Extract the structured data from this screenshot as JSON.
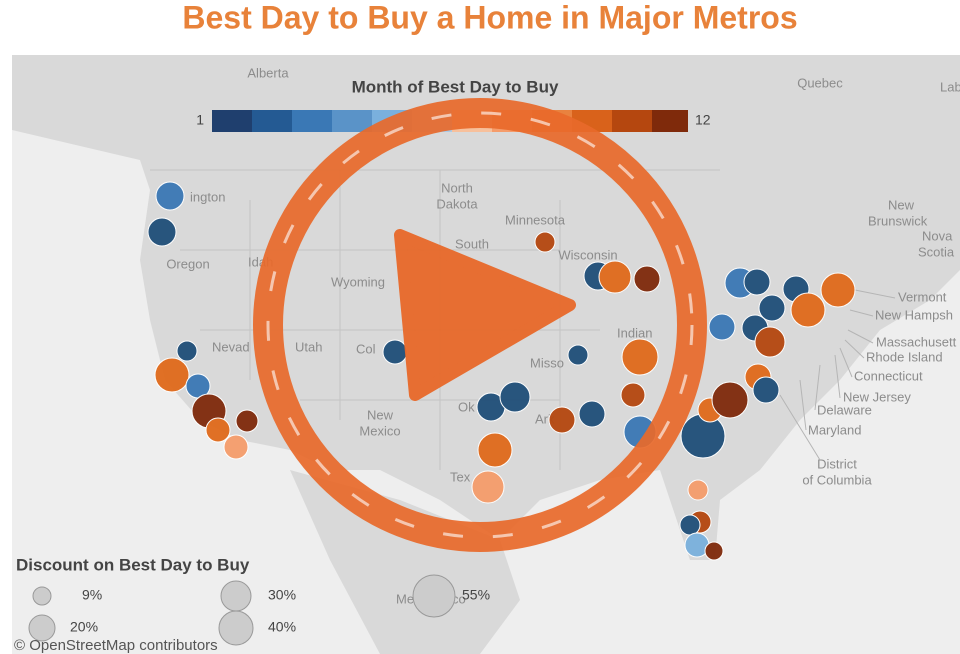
{
  "header": {
    "title": "Best Day to Buy a Home in Major Metros"
  },
  "color_legend": {
    "title": "Month of Best Day to Buy",
    "min_label": "1",
    "max_label": "12"
  },
  "size_legend": {
    "title": "Discount on Best Day to Buy",
    "entries": [
      "9%",
      "20%",
      "30%",
      "40%",
      "55%"
    ]
  },
  "map": {
    "labels": [
      "Alberta",
      "Quebec",
      "Lab",
      "ington",
      "Oregon",
      "Idah",
      "Nevad",
      "Utah",
      "Wyoming",
      "North",
      "Dakota",
      "Minnesota",
      "Wisconsin",
      "South",
      "Col",
      "Misso",
      "Indian",
      "New",
      "Mexico",
      "Tex",
      "Ok",
      "Ark",
      "New",
      "Brunswick",
      "Nova",
      "Scotia",
      "Vermont",
      "New Hampsh",
      "Massachusett",
      "Rhode Island",
      "Connecticut",
      "New Jersey",
      "Delaware",
      "Maryland",
      "District",
      "of Columbia",
      "Me",
      "co"
    ],
    "attribution": "© OpenStreetMap contributors"
  }
}
